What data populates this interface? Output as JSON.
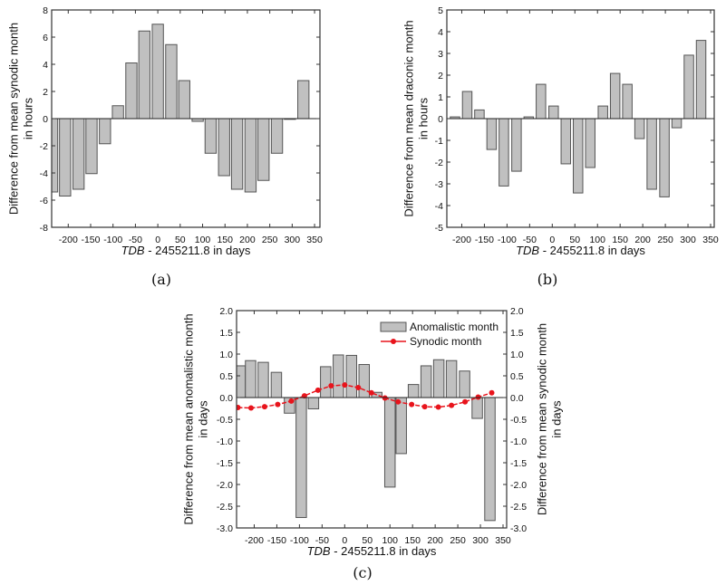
{
  "chart_data": [
    {
      "type": "bar",
      "caption": "(a)",
      "xlabel_italic": "TDB",
      "xlabel_rest": " - 2455211.8 in days",
      "ylabel": [
        "Difference from mean synodic month",
        "in hours"
      ],
      "xlim": [
        -237,
        362
      ],
      "ylim": [
        -8,
        8
      ],
      "xticks": [
        -200,
        -150,
        -100,
        -50,
        0,
        50,
        100,
        150,
        200,
        250,
        300,
        350
      ],
      "yticks": [
        -8,
        -6,
        -4,
        -2,
        0,
        2,
        4,
        6,
        8
      ],
      "bar_width_days": 25,
      "x": [
        -236,
        -207,
        -177,
        -148,
        -118,
        -89,
        -59,
        -30,
        0,
        30,
        59,
        89,
        118,
        148,
        177,
        207,
        236,
        266,
        295,
        325
      ],
      "values": [
        -5.4,
        -5.7,
        -5.2,
        -4.05,
        -1.85,
        0.95,
        4.1,
        6.45,
        6.95,
        5.45,
        2.8,
        -0.2,
        -2.55,
        -4.2,
        -5.2,
        -5.4,
        -4.55,
        -2.55,
        -0.05,
        2.8
      ],
      "grid": false
    },
    {
      "type": "bar",
      "caption": "(b)",
      "xlabel_italic": "TDB",
      "xlabel_rest": " - 2455211.8 in days",
      "ylabel": [
        "Difference from mean draconic month",
        "in hours"
      ],
      "xlim": [
        -233,
        358
      ],
      "ylim": [
        -5,
        5
      ],
      "xticks": [
        -200,
        -150,
        -100,
        -50,
        0,
        50,
        100,
        150,
        200,
        250,
        300,
        350
      ],
      "yticks": [
        -5,
        -4,
        -3,
        -2,
        -1,
        0,
        1,
        2,
        3,
        4,
        5
      ],
      "bar_width_days": 21,
      "x": [
        -215,
        -188,
        -161,
        -134,
        -107,
        -79,
        -52,
        -25,
        3,
        30,
        57,
        84,
        112,
        139,
        166,
        193,
        220,
        248,
        275,
        302,
        329
      ],
      "values": [
        0.08,
        1.25,
        0.4,
        -1.42,
        -3.1,
        -2.42,
        0.08,
        1.58,
        0.58,
        -2.08,
        -3.42,
        -2.25,
        0.58,
        2.08,
        1.58,
        -0.92,
        -3.25,
        -3.6,
        -0.42,
        2.92,
        3.6
      ],
      "grid": false
    },
    {
      "type": "bar+line",
      "caption": "(c)",
      "xlabel_italic": "TDB",
      "xlabel_rest": " - 2455211.8 in days",
      "ylabel": [
        "Difference from mean anomalistic month",
        "in days"
      ],
      "ylabel_right": [
        "Difference from mean synodic month",
        "in days"
      ],
      "xlim": [
        -239,
        358
      ],
      "ylim": [
        -3.0,
        2.0
      ],
      "ylim_right": [
        -3.0,
        2.0
      ],
      "xticks": [
        -200,
        -150,
        -100,
        -50,
        0,
        50,
        100,
        150,
        200,
        250,
        300,
        350
      ],
      "yticks": [
        "-3.0",
        "-2.5",
        "-2.0",
        "-1.5",
        "-1.0",
        "-0.5",
        "0.0",
        "0.5",
        "1.0",
        "1.5",
        "2.0"
      ],
      "legend_position": "top-right",
      "bar_width_days": 23,
      "series": [
        {
          "name": "Anomalistic month",
          "type": "bar",
          "color": "#c0c0c0",
          "x": [
            -231,
            -208,
            -180,
            -151,
            -122,
            -96,
            -69,
            -42,
            -14,
            15,
            43,
            71,
            100,
            125,
            152,
            180,
            208,
            236,
            265,
            293,
            321
          ],
          "values": [
            0.73,
            0.85,
            0.81,
            0.58,
            -0.36,
            -2.76,
            -0.26,
            0.71,
            0.98,
            0.97,
            0.76,
            0.12,
            -2.06,
            -1.29,
            0.3,
            0.73,
            0.87,
            0.85,
            0.61,
            -0.48,
            -2.83
          ]
        },
        {
          "name": "Synodic month",
          "type": "line",
          "color": "#e8141c",
          "x": [
            -236,
            -207,
            -177,
            -148,
            -118,
            -89,
            -59,
            -30,
            0,
            30,
            59,
            89,
            118,
            148,
            177,
            207,
            236,
            266,
            295,
            325
          ],
          "values": [
            -0.23,
            -0.24,
            -0.21,
            -0.16,
            -0.08,
            0.04,
            0.17,
            0.27,
            0.29,
            0.23,
            0.11,
            -0.01,
            -0.1,
            -0.16,
            -0.21,
            -0.22,
            -0.18,
            -0.1,
            0.01,
            0.11
          ]
        }
      ],
      "grid": false
    }
  ]
}
